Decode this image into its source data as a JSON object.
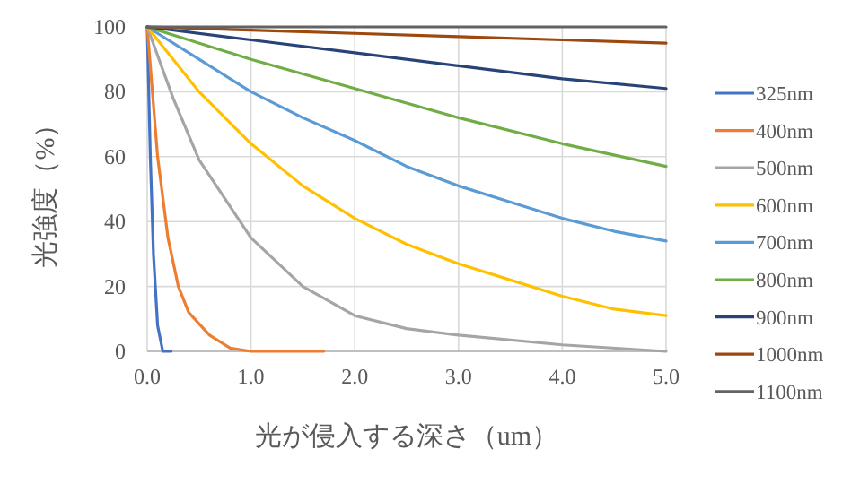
{
  "chart_data": {
    "type": "line",
    "xlabel": "光が侵入する深さ（um）",
    "ylabel": "光強度（%）",
    "xlim": [
      0,
      5
    ],
    "ylim": [
      0,
      100
    ],
    "xticks": [
      {
        "value": 0,
        "label": "0.0"
      },
      {
        "value": 1,
        "label": "1.0"
      },
      {
        "value": 2,
        "label": "2.0"
      },
      {
        "value": 3,
        "label": "3.0"
      },
      {
        "value": 4,
        "label": "4.0"
      },
      {
        "value": 5,
        "label": "5.0"
      }
    ],
    "yticks": [
      0,
      20,
      40,
      60,
      80,
      100
    ],
    "grid": true,
    "legend": "right",
    "series": [
      {
        "name": "325nm",
        "color": "#4472c4",
        "x": [
          0,
          0.03,
          0.06,
          0.1,
          0.15,
          0.23
        ],
        "values": [
          100,
          60,
          30,
          8,
          0,
          0
        ]
      },
      {
        "name": "400nm",
        "color": "#ed7d31",
        "x": [
          0,
          0.1,
          0.2,
          0.3,
          0.4,
          0.6,
          0.8,
          1.0,
          1.7
        ],
        "values": [
          100,
          60,
          35,
          20,
          12,
          5,
          1,
          0,
          0
        ]
      },
      {
        "name": "500nm",
        "color": "#a5a5a5",
        "x": [
          0,
          0.25,
          0.5,
          1,
          1.5,
          2,
          2.5,
          3,
          4,
          5
        ],
        "values": [
          100,
          78,
          59,
          35,
          20,
          11,
          7,
          5,
          2,
          0
        ]
      },
      {
        "name": "600nm",
        "color": "#ffc000",
        "x": [
          0,
          0.5,
          1,
          1.5,
          2,
          2.5,
          3,
          3.5,
          4,
          4.5,
          5
        ],
        "values": [
          100,
          80,
          64,
          51,
          41,
          33,
          27,
          22,
          17,
          13,
          11
        ]
      },
      {
        "name": "700nm",
        "color": "#5b9bd5",
        "x": [
          0,
          0.5,
          1,
          1.5,
          2,
          2.5,
          3,
          3.5,
          4,
          4.5,
          5
        ],
        "values": [
          100,
          90,
          80,
          72,
          65,
          57,
          51,
          46,
          41,
          37,
          34
        ]
      },
      {
        "name": "800nm",
        "color": "#70ad47",
        "x": [
          0,
          1,
          2,
          3,
          4,
          5
        ],
        "values": [
          100,
          90,
          81,
          72,
          64,
          57
        ]
      },
      {
        "name": "900nm",
        "color": "#264478",
        "x": [
          0,
          1,
          2,
          3,
          4,
          5
        ],
        "values": [
          100,
          96,
          92,
          88,
          84,
          81
        ]
      },
      {
        "name": "1000nm",
        "color": "#9e480e",
        "x": [
          0,
          1,
          2,
          3,
          4,
          5
        ],
        "values": [
          100,
          99,
          98,
          97,
          96,
          95
        ]
      },
      {
        "name": "1100nm",
        "color": "#636363",
        "x": [
          0,
          5
        ],
        "values": [
          100,
          100
        ]
      }
    ]
  }
}
